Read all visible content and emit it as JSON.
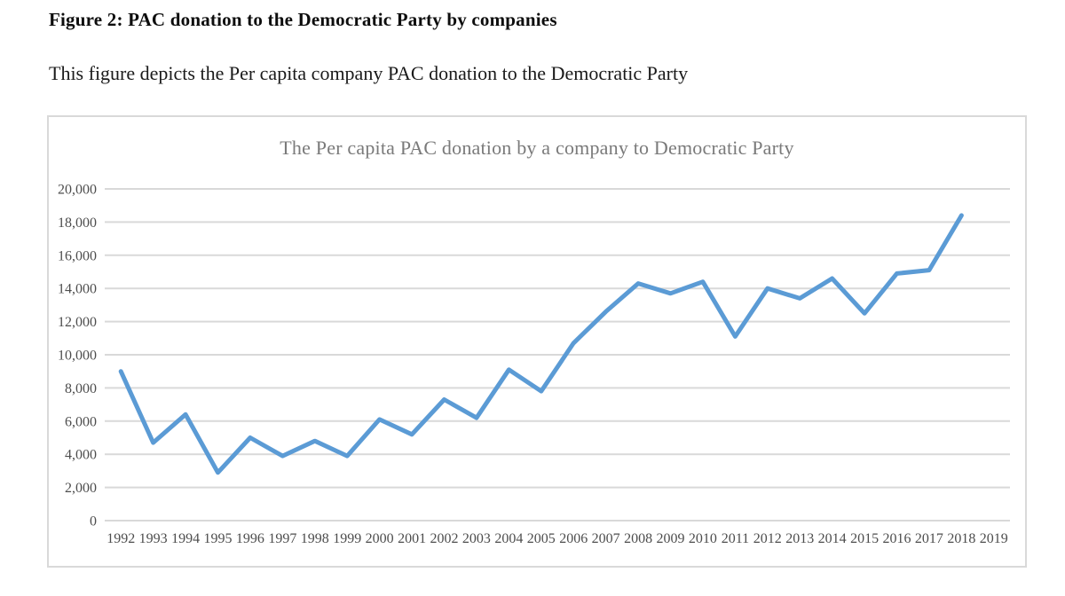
{
  "page": {
    "figure_label": "Figure 2: PAC donation to the Democratic Party by companies",
    "figure_description": "This figure depicts the Per capita company PAC donation to the Democratic Party"
  },
  "chart_data": {
    "type": "line",
    "title": "The Per capita PAC donation by a company to Democratic Party",
    "xlabel": "",
    "ylabel": "",
    "ylim": [
      0,
      20000
    ],
    "grid": "horizontal",
    "legend": "none",
    "categories": [
      "1992",
      "1993",
      "1994",
      "1995",
      "1996",
      "1997",
      "1998",
      "1999",
      "2000",
      "2001",
      "2002",
      "2003",
      "2004",
      "2005",
      "2006",
      "2007",
      "2008",
      "2009",
      "2010",
      "2011",
      "2012",
      "2013",
      "2014",
      "2015",
      "2016",
      "2017",
      "2018",
      "2019"
    ],
    "values": [
      9000,
      4700,
      6400,
      2900,
      5000,
      3900,
      4800,
      3900,
      6100,
      5200,
      7300,
      6200,
      9100,
      7800,
      10700,
      12600,
      14300,
      13700,
      14400,
      11100,
      14000,
      13400,
      14600,
      12500,
      14900,
      15100,
      18400
    ],
    "note": "values cover 1992-2018; the 2019 category has no data point",
    "y_ticks": [
      {
        "value": 20000,
        "label": "20,000"
      },
      {
        "value": 18000,
        "label": "18,000"
      },
      {
        "value": 16000,
        "label": "16,000"
      },
      {
        "value": 14000,
        "label": "14,000"
      },
      {
        "value": 12000,
        "label": "12,000"
      },
      {
        "value": 10000,
        "label": "10,000"
      },
      {
        "value": 8000,
        "label": "8,000"
      },
      {
        "value": 6000,
        "label": "6,000"
      },
      {
        "value": 4000,
        "label": "4,000"
      },
      {
        "value": 2000,
        "label": "2,000"
      },
      {
        "value": 0,
        "label": "0"
      }
    ],
    "line_color": "#5B9BD5",
    "gridline_color": "#D9D9D9",
    "title_color": "#7a7a7a",
    "tick_label_color": "#4d4d4d"
  }
}
